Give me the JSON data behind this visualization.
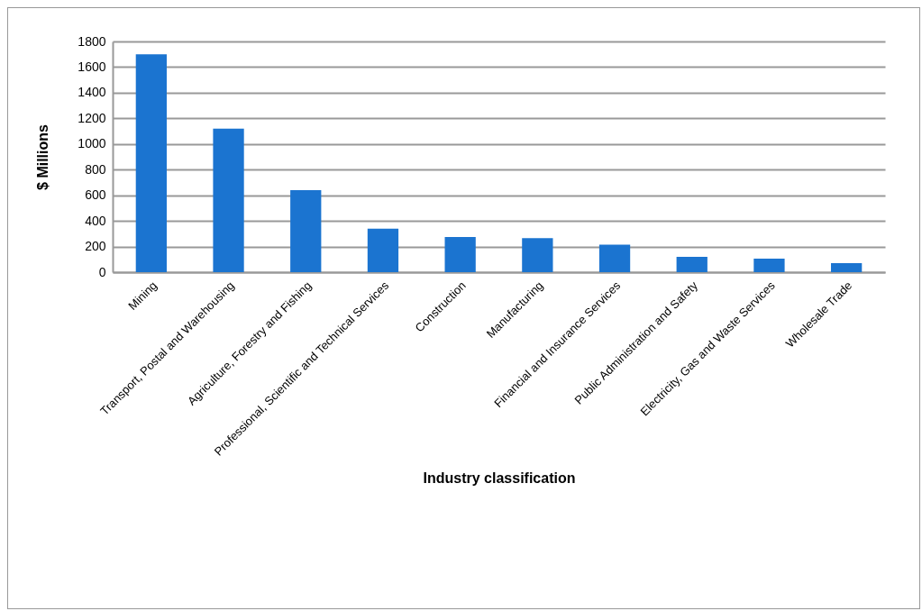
{
  "chart_data": {
    "type": "bar",
    "xlabel": "Industry classification",
    "ylabel": "$ Millions",
    "categories": [
      "Mining",
      "Transport, Postal and Warehousing",
      "Agriculture, Forestry and Fishing",
      "Professional, Scientific and Technical Services",
      "Construction",
      "Manufacturing",
      "Financial and Insurance Services",
      "Public Administration and Safety",
      "Electricity, Gas and Waste Services",
      "Wholesale Trade"
    ],
    "values": [
      1700,
      1120,
      640,
      340,
      275,
      265,
      215,
      120,
      105,
      70
    ],
    "color": "#1b74d0",
    "ylim": [
      0,
      1800
    ],
    "yticks": [
      0,
      200,
      400,
      600,
      800,
      1000,
      1200,
      1400,
      1600,
      1800
    ],
    "grid": "y"
  }
}
